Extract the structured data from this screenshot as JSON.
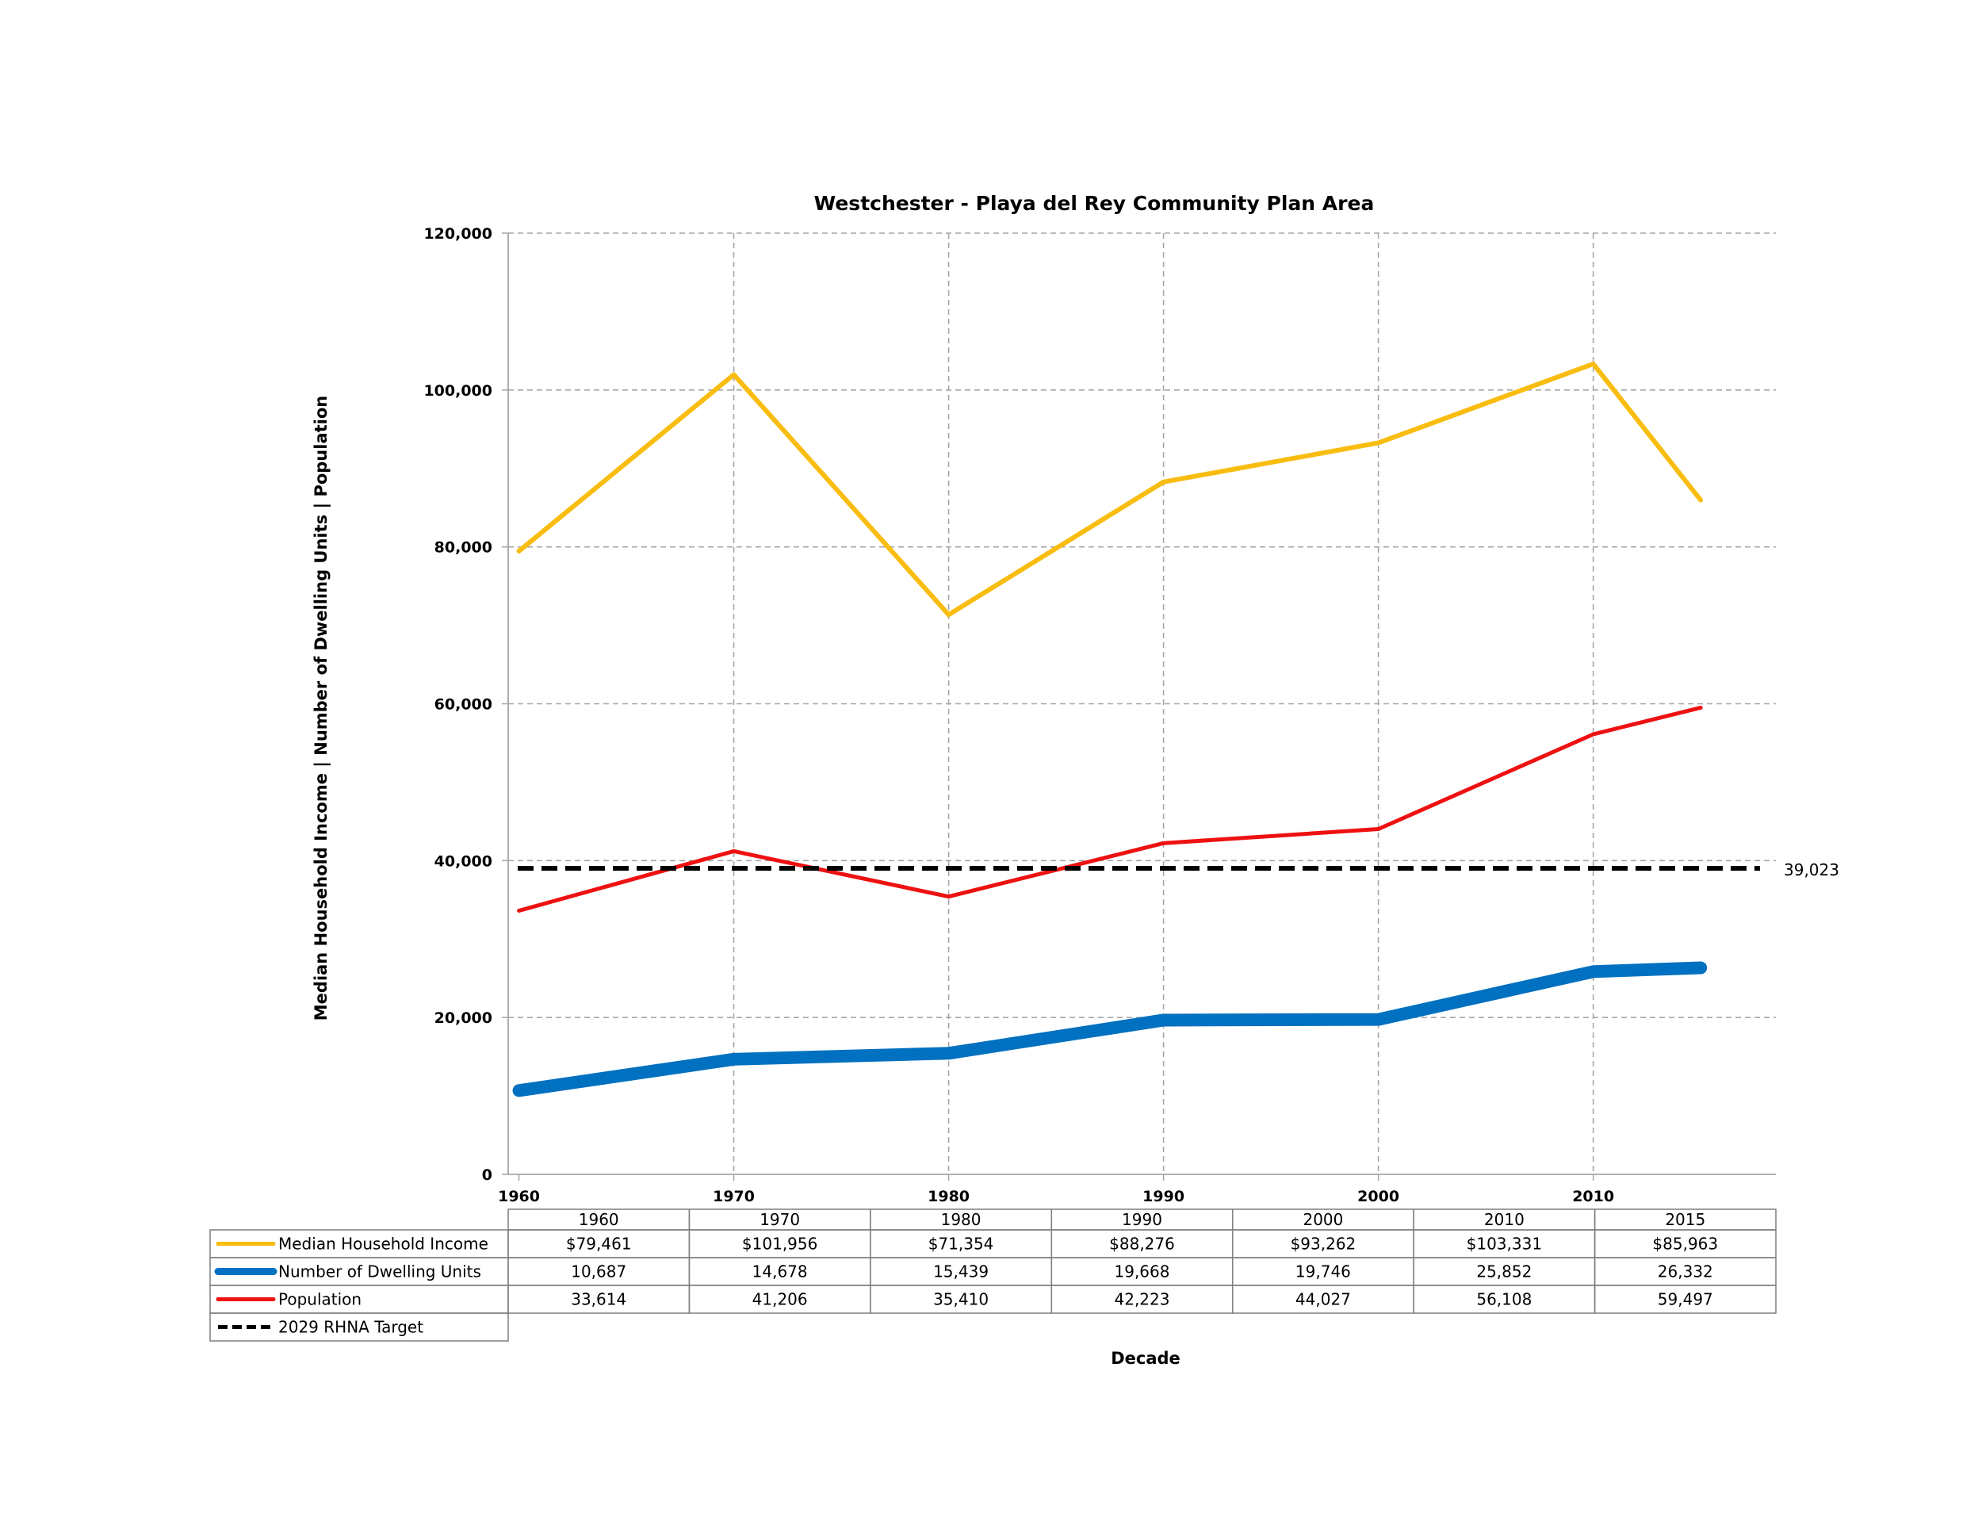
{
  "chart_data": {
    "type": "line",
    "title": "Westchester - Playa del Rey Community Plan Area",
    "xlabel": "Decade",
    "ylabel": "Median Household Income | Number of Dwelling Units | Population",
    "ylim": [
      0,
      120000
    ],
    "y_ticks": [
      "0",
      "20,000",
      "40,000",
      "60,000",
      "80,000",
      "100,000",
      "120,000"
    ],
    "x_ticks": [
      "1960",
      "1970",
      "1980",
      "1990",
      "2000",
      "2010"
    ],
    "grid": true,
    "x": [
      1960,
      1970,
      1980,
      1990,
      2000,
      2010,
      2015
    ],
    "table_headers": [
      "1960",
      "1970",
      "1980",
      "1990",
      "2000",
      "2010",
      "2015"
    ],
    "series": [
      {
        "name": "Median Household Income",
        "color": "#F8BD10",
        "values": [
          79461,
          101956,
          71354,
          88276,
          93262,
          103331,
          85963
        ],
        "labels": [
          "$79,461",
          "$101,956",
          "$71,354",
          "$88,276",
          "$93,262",
          "$103,331",
          "$85,963"
        ]
      },
      {
        "name": "Number of Dwelling Units",
        "color": "#0070C0",
        "values": [
          10687,
          14678,
          15439,
          19668,
          19746,
          25852,
          26332
        ],
        "labels": [
          "10,687",
          "14,678",
          "15,439",
          "19,668",
          "19,746",
          "25,852",
          "26,332"
        ]
      },
      {
        "name": "Population",
        "color": "#EE1111",
        "values": [
          33614,
          41206,
          35410,
          42223,
          44027,
          56108,
          59497
        ],
        "labels": [
          "33,614",
          "41,206",
          "35,410",
          "42,223",
          "44,027",
          "56,108",
          "59,497"
        ]
      }
    ],
    "target": {
      "name": "2029 RHNA Target",
      "value": 39023,
      "label": "39,023",
      "color": "#000000"
    }
  }
}
